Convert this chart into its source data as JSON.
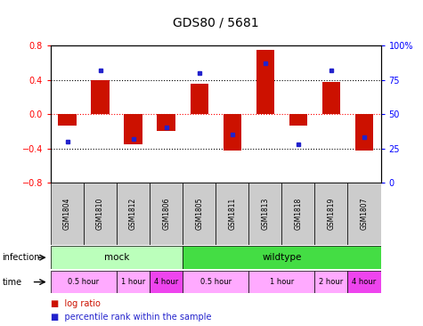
{
  "title": "GDS80 / 5681",
  "samples": [
    "GSM1804",
    "GSM1810",
    "GSM1812",
    "GSM1806",
    "GSM1805",
    "GSM1811",
    "GSM1813",
    "GSM1818",
    "GSM1819",
    "GSM1807"
  ],
  "log_ratio": [
    -0.13,
    0.4,
    -0.35,
    -0.2,
    0.35,
    -0.43,
    0.75,
    -0.13,
    0.38,
    -0.43
  ],
  "percentile": [
    30,
    82,
    32,
    40,
    80,
    35,
    87,
    28,
    82,
    33
  ],
  "ylim_left": [
    -0.8,
    0.8
  ],
  "ylim_right": [
    0,
    100
  ],
  "yticks_left": [
    -0.8,
    -0.4,
    0.0,
    0.4,
    0.8
  ],
  "yticks_right": [
    0,
    25,
    50,
    75,
    100
  ],
  "bar_color": "#cc1100",
  "dot_color": "#2222cc",
  "infection_groups": [
    {
      "label": "mock",
      "start": 0,
      "end": 4,
      "color": "#bbffbb"
    },
    {
      "label": "wildtype",
      "start": 4,
      "end": 10,
      "color": "#44dd44"
    }
  ],
  "time_groups": [
    {
      "label": "0.5 hour",
      "start": 0,
      "end": 2,
      "color": "#ffaaff"
    },
    {
      "label": "1 hour",
      "start": 2,
      "end": 3,
      "color": "#ffaaff"
    },
    {
      "label": "4 hour",
      "start": 3,
      "end": 4,
      "color": "#ee44ee"
    },
    {
      "label": "0.5 hour",
      "start": 4,
      "end": 6,
      "color": "#ffaaff"
    },
    {
      "label": "1 hour",
      "start": 6,
      "end": 8,
      "color": "#ffaaff"
    },
    {
      "label": "2 hour",
      "start": 8,
      "end": 9,
      "color": "#ffaaff"
    },
    {
      "label": "4 hour",
      "start": 9,
      "end": 10,
      "color": "#ee44ee"
    }
  ]
}
